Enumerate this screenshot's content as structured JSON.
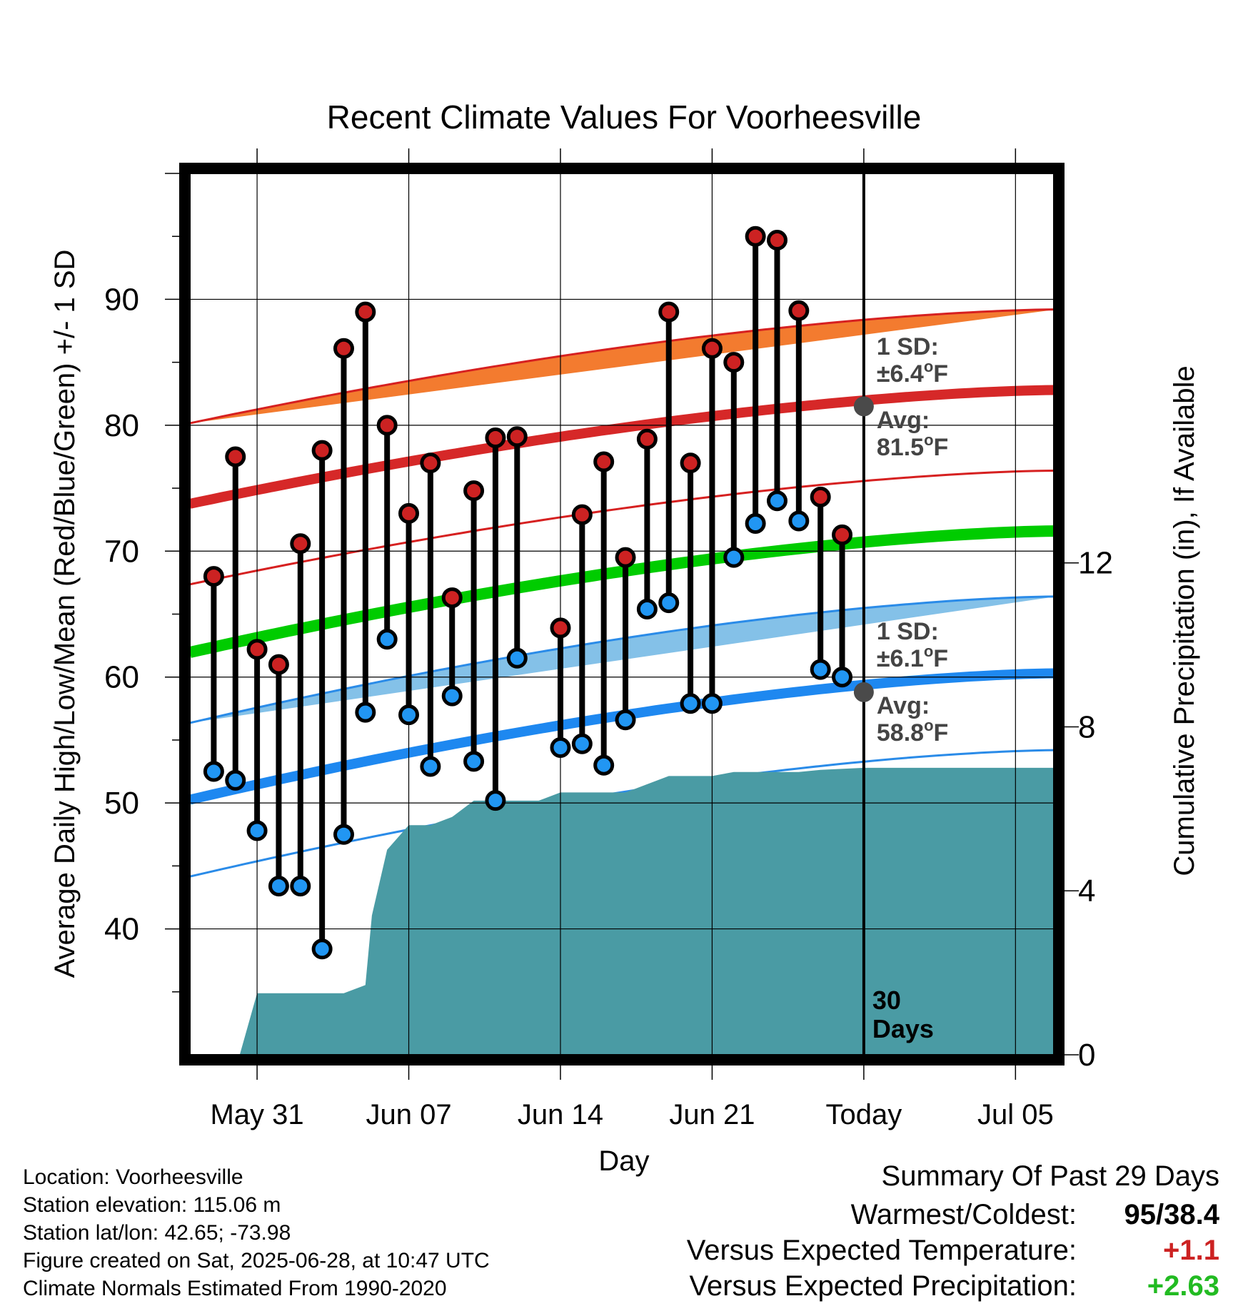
{
  "chart_data": {
    "type": "line",
    "title": "Recent Climate Values For Voorheesville",
    "xlabel": "Day",
    "ylabel": "Average Daily High/Low/Mean (Red/Blue/Green) +/- 1 SD",
    "y2label": "Cumulative Precipitation (in), If Available",
    "x_ticks": [
      "May 31",
      "Jun 07",
      "Jun 14",
      "Jun 21",
      "Today",
      "Jul 05"
    ],
    "x_tick_days": [
      3,
      10,
      17,
      24,
      31,
      38
    ],
    "xlim": [
      -0.1,
      40.7
    ],
    "y_ticks": [
      40,
      50,
      60,
      70,
      80,
      90
    ],
    "ylim": [
      30,
      100
    ],
    "y2_ticks": [
      0,
      4,
      8,
      12
    ],
    "y2_range_at_plot_bottom_to_top": [
      0,
      21.5
    ],
    "grid": true,
    "today_marker": {
      "day": 31,
      "label_line1": "30",
      "label_line2": "Days"
    },
    "days": [
      1,
      2,
      3,
      4,
      5,
      6,
      7,
      8,
      9,
      10,
      11,
      12,
      13,
      14,
      15,
      16,
      17,
      18,
      19,
      20,
      21,
      22,
      23,
      24,
      25,
      26,
      27,
      28,
      29,
      30
    ],
    "observed_high": [
      68,
      77.5,
      62.2,
      61,
      70.6,
      78,
      86.1,
      89,
      80,
      73,
      77,
      66.3,
      74.8,
      79,
      79.1,
      null,
      63.9,
      72.9,
      77.1,
      69.5,
      78.9,
      89,
      77,
      86.1,
      85,
      95,
      94.7,
      89.1,
      74.3,
      71.3
    ],
    "observed_low": [
      52.5,
      51.8,
      47.8,
      43.4,
      43.4,
      38.4,
      47.5,
      57.2,
      63,
      57,
      52.9,
      58.5,
      53.3,
      50.2,
      61.5,
      null,
      54.4,
      54.7,
      53,
      56.6,
      65.4,
      65.9,
      57.9,
      57.9,
      69.5,
      72.2,
      74,
      72.4,
      60.6,
      60
    ],
    "normal_high": {
      "day_start": 0,
      "day_end": 40,
      "start": 73.8,
      "end": 82.8,
      "today_day": 31,
      "today_avg": 81.5,
      "sd": 6.4
    },
    "normal_low": {
      "day_start": 0,
      "day_end": 40,
      "start": 50.3,
      "end": 60.3,
      "today_day": 31,
      "today_avg": 58.8,
      "sd": 6.1
    },
    "normal_mean": {
      "day_start": 0,
      "day_end": 40,
      "start": 62.0,
      "end": 71.6
    },
    "annotations": {
      "high_sd_line1": "1 SD:",
      "high_sd_line2": "±6.4",
      "high_avg_line1": "Avg:",
      "high_avg_line2": "81.5",
      "low_sd_line1": "1 SD:",
      "low_sd_line2": "±6.1",
      "low_avg_line1": "Avg:",
      "low_avg_line2": "58.8",
      "degree": "o",
      "unit": "F"
    },
    "cumulative_precip_steps": [
      {
        "day": 2.2,
        "value": 0
      },
      {
        "day": 3,
        "value": 1.5
      },
      {
        "day": 7,
        "value": 1.5
      },
      {
        "day": 8,
        "value": 1.7
      },
      {
        "day": 8.3,
        "value": 3.4
      },
      {
        "day": 9,
        "value": 5.0
      },
      {
        "day": 10,
        "value": 5.6
      },
      {
        "day": 11,
        "value": 5.6
      },
      {
        "day": 12,
        "value": 5.8
      },
      {
        "day": 13,
        "value": 6.2
      },
      {
        "day": 16,
        "value": 6.2
      },
      {
        "day": 17,
        "value": 6.4
      },
      {
        "day": 20,
        "value": 6.4
      },
      {
        "day": 21,
        "value": 6.6
      },
      {
        "day": 22,
        "value": 6.8
      },
      {
        "day": 24,
        "value": 6.8
      },
      {
        "day": 25,
        "value": 6.9
      },
      {
        "day": 28,
        "value": 6.9
      },
      {
        "day": 29,
        "value": 6.95
      },
      {
        "day": 31,
        "value": 7.0
      },
      {
        "day": 40.7,
        "value": 7.0
      }
    ],
    "colors": {
      "high_band": "#f37b2f",
      "high_edge": "#d62020",
      "high_line": "#d62828",
      "high_marker": "#cc2222",
      "low_band": "#84c1e8",
      "low_edge": "#2a8be8",
      "low_line": "#1e88f0",
      "low_marker": "#2196f3",
      "mean_line": "#00cc00",
      "precip": "#4a9ba4",
      "avg_dot": "#4a4a4a",
      "anno_text": "#444444"
    }
  },
  "footer": {
    "location": "Location: Voorheesville",
    "elevation": "Station elevation: 115.06 m",
    "latlon": "Station lat/lon: 42.65; -73.98",
    "created": "Figure created on Sat, 2025-06-28, at 10:47 UTC",
    "normals": "Climate Normals Estimated From 1990-2020"
  },
  "summary": {
    "title": "Summary Of Past 29 Days",
    "warmest_coldest_label": "Warmest/Coldest:",
    "warmest_coldest_value": "95/38.4",
    "temp_label": "Versus Expected Temperature:",
    "temp_value": "+1.1",
    "temp_color": "#cc2222",
    "precip_label": "Versus Expected Precipitation:",
    "precip_value": "+2.63",
    "precip_color": "#22bb22"
  }
}
